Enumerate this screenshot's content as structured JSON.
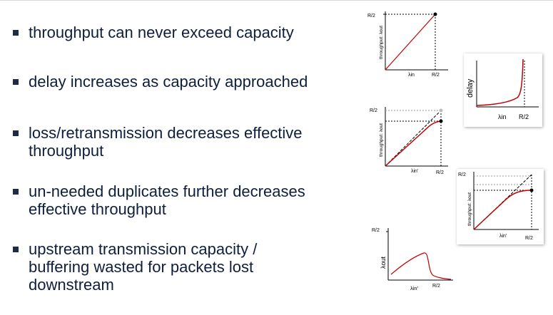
{
  "bullets": [
    {
      "text": "throughput can never exceed capacity"
    },
    {
      "text": "delay increases as capacity approached"
    },
    {
      "text": "loss/retransmission decreases effective throughput"
    },
    {
      "text": "un-needed duplicates further decreases effective throughput"
    },
    {
      "text": "upstream transmission capacity / buffering wasted for packets lost downstream"
    }
  ],
  "graphs": {
    "throughput_ideal": {
      "y_tick": "R/2",
      "x_tick": "R/2",
      "y_label": "throughput: λout",
      "x_label": "λin"
    },
    "delay": {
      "y_label": "delay",
      "x_label": "λin",
      "x_tick": "R/2"
    },
    "throughput_loss": {
      "y_tick": "R/2",
      "x_tick": "R/2",
      "y_label": "throughput: λout",
      "x_label": "λin'"
    },
    "throughput_duplicates": {
      "y_tick": "R/2",
      "x_tick": "R/2",
      "y_label": "throughput: λout",
      "x_label": "λin'"
    },
    "upstream_waste": {
      "y_tick": "R/2",
      "x_tick": "R/2",
      "y_label": "λout",
      "x_label": "λin'"
    }
  },
  "colors": {
    "curve": "#c00000",
    "text": "#0f1e3d",
    "axis": "#000000"
  }
}
